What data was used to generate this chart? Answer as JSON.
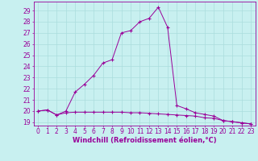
{
  "xlabel": "Windchill (Refroidissement éolien,°C)",
  "background_color": "#c8f0f0",
  "line_color": "#990099",
  "grid_color": "#aadddd",
  "ylim": [
    18.7,
    29.8
  ],
  "xlim": [
    -0.5,
    23.5
  ],
  "yticks": [
    19,
    20,
    21,
    22,
    23,
    24,
    25,
    26,
    27,
    28,
    29
  ],
  "xticks": [
    0,
    1,
    2,
    3,
    4,
    5,
    6,
    7,
    8,
    9,
    10,
    11,
    12,
    13,
    14,
    15,
    16,
    17,
    18,
    19,
    20,
    21,
    22,
    23
  ],
  "line1_x": [
    0,
    1,
    2,
    3,
    4,
    5,
    6,
    7,
    8,
    9,
    10,
    11,
    12,
    13,
    14,
    15,
    16,
    17,
    18,
    19,
    20,
    21,
    22,
    23
  ],
  "line1_y": [
    20.0,
    20.1,
    19.65,
    19.85,
    19.9,
    19.9,
    19.9,
    19.9,
    19.9,
    19.9,
    19.85,
    19.85,
    19.8,
    19.75,
    19.7,
    19.65,
    19.6,
    19.55,
    19.4,
    19.35,
    19.15,
    19.05,
    18.95,
    18.85
  ],
  "line2_x": [
    0,
    1,
    2,
    3,
    4,
    5,
    6,
    7,
    8,
    9,
    10,
    11,
    12,
    13,
    14,
    15,
    16,
    17,
    18,
    19,
    20,
    21,
    22,
    23
  ],
  "line2_y": [
    20.0,
    20.1,
    19.65,
    20.0,
    21.7,
    22.4,
    23.2,
    24.3,
    24.6,
    27.0,
    27.2,
    28.0,
    28.3,
    29.3,
    27.5,
    20.5,
    20.2,
    19.85,
    19.7,
    19.55,
    19.15,
    19.05,
    18.95,
    18.85
  ],
  "xlabel_fontsize": 6,
  "tick_fontsize": 5.5,
  "linewidth": 0.7,
  "markersize": 2.5
}
